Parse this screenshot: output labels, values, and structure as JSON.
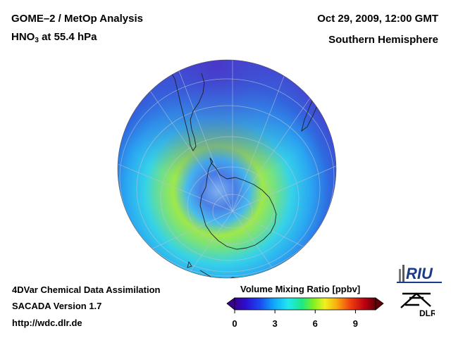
{
  "header": {
    "title_line1": "GOME–2 / MetOp Analysis",
    "species": "HNO",
    "species_sub": "3",
    "level": " at 55.4 hPa",
    "date": "Oct 29, 2009, 12:00 GMT",
    "region": "Southern Hemisphere"
  },
  "footer": {
    "system": "4DVar Chemical Data Assimilation",
    "version": "SACADA Version 1.7",
    "url": "http://wdc.dlr.de"
  },
  "colorbar": {
    "title": "Volume Mixing Ratio [ppbv]",
    "ticks": [
      "0",
      "3",
      "6",
      "9"
    ],
    "min": 0,
    "max": 10.5
  },
  "logos": {
    "riu": "RIU",
    "dlr": "DLR"
  },
  "colors": {
    "outer_field": "#4a3fd0",
    "mid_field": "#2f8ef0",
    "band_field": "#36c9f0",
    "max_ring": "#8fe24a",
    "vortex_core": "#5f8fe0"
  },
  "icons": {
    "left_arrow": "triangle-left",
    "right_arrow": "triangle-right"
  }
}
